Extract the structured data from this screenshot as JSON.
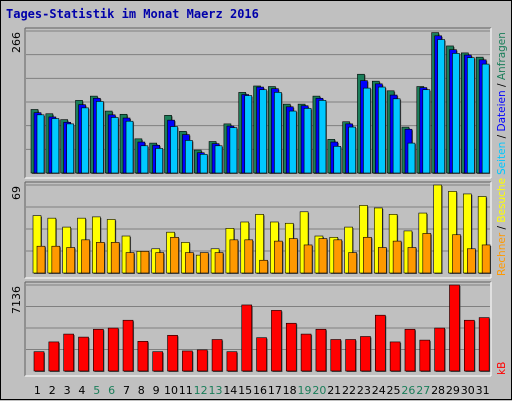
{
  "title": "Tages-Statistik im Monat Maerz 2016",
  "colors": {
    "background": "#c0c0c0",
    "panel": "#c0c0c0",
    "grid": "#808080",
    "title": "#0000aa",
    "anfragen": "#1b7e5a",
    "dateien": "#0000ff",
    "seiten": "#00c8ff",
    "besuche": "#ffff00",
    "rechner": "#ff9900",
    "kb": "#ff0000",
    "weekend_label": "#1b7e5a",
    "weekday_label": "#000000"
  },
  "chart_data": [
    {
      "type": "bar",
      "panel": "top",
      "ymax_label": "266",
      "ylim": [
        0,
        266
      ],
      "categories": [
        "1",
        "2",
        "3",
        "4",
        "5",
        "6",
        "7",
        "8",
        "9",
        "10",
        "11",
        "12",
        "13",
        "14",
        "15",
        "16",
        "17",
        "18",
        "19",
        "20",
        "21",
        "22",
        "23",
        "24",
        "25",
        "26",
        "27",
        "28",
        "29",
        "30",
        "31"
      ],
      "weekend_days": [
        "5",
        "6",
        "12",
        "13",
        "19",
        "20",
        "26",
        "27"
      ],
      "legend": [
        "Anfragen",
        "Dateien",
        "Seiten"
      ],
      "series": [
        {
          "name": "Anfragen",
          "color": "#1b7e5a",
          "values": [
            119,
            111,
            100,
            136,
            144,
            116,
            110,
            64,
            56,
            108,
            78,
            43,
            59,
            92,
            151,
            163,
            162,
            129,
            129,
            144,
            63,
            96,
            185,
            172,
            154,
            86,
            162,
            263,
            238,
            225,
            217
          ]
        },
        {
          "name": "Dateien",
          "color": "#0000ff",
          "values": [
            113,
            105,
            95,
            128,
            140,
            109,
            103,
            58,
            52,
            99,
            72,
            38,
            55,
            88,
            147,
            161,
            158,
            124,
            126,
            140,
            58,
            92,
            173,
            167,
            146,
            82,
            160,
            257,
            231,
            221,
            212
          ]
        },
        {
          "name": "Seiten",
          "color": "#00c8ff",
          "values": [
            109,
            102,
            92,
            122,
            134,
            104,
            97,
            51,
            46,
            87,
            61,
            35,
            51,
            85,
            145,
            156,
            151,
            116,
            121,
            136,
            50,
            86,
            159,
            161,
            139,
            56,
            156,
            250,
            224,
            216,
            204
          ]
        }
      ]
    },
    {
      "type": "bar",
      "panel": "middle",
      "ymax_label": "69",
      "ylim": [
        0,
        69
      ],
      "categories": [
        "1",
        "2",
        "3",
        "4",
        "5",
        "6",
        "7",
        "8",
        "9",
        "10",
        "11",
        "12",
        "13",
        "14",
        "15",
        "16",
        "17",
        "18",
        "19",
        "20",
        "21",
        "22",
        "23",
        "24",
        "25",
        "26",
        "27",
        "28",
        "29",
        "30",
        "31"
      ],
      "legend": [
        "Rechner",
        "Besuche"
      ],
      "series": [
        {
          "name": "Besuche",
          "color": "#ffff00",
          "values": [
            45,
            43,
            36,
            43,
            44,
            42,
            29,
            17,
            19,
            32,
            24,
            14,
            19,
            35,
            40,
            46,
            40,
            39,
            48,
            29,
            28,
            36,
            53,
            51,
            46,
            33,
            47,
            69,
            64,
            62,
            60
          ]
        },
        {
          "name": "Rechner",
          "color": "#ff9900",
          "values": [
            21,
            21,
            20,
            26,
            24,
            24,
            16,
            17,
            16,
            28,
            16,
            16,
            16,
            26,
            26,
            10,
            25,
            27,
            22,
            27,
            26,
            16,
            28,
            20,
            25,
            20,
            31,
            0,
            30,
            19,
            22
          ]
        }
      ]
    },
    {
      "type": "bar",
      "panel": "bottom",
      "ymax_label": "7136",
      "ylim": [
        0,
        7136
      ],
      "categories": [
        "1",
        "2",
        "3",
        "4",
        "5",
        "6",
        "7",
        "8",
        "9",
        "10",
        "11",
        "12",
        "13",
        "14",
        "15",
        "16",
        "17",
        "18",
        "19",
        "20",
        "21",
        "22",
        "23",
        "24",
        "25",
        "26",
        "27",
        "28",
        "29",
        "30",
        "31"
      ],
      "legend": [
        "kB"
      ],
      "series": [
        {
          "name": "kB",
          "color": "#ff0000",
          "values": [
            1603,
            2413,
            3063,
            2813,
            3463,
            3563,
            4213,
            2463,
            1603,
            2963,
            1663,
            1753,
            2613,
            1603,
            5480,
            2763,
            5030,
            3963,
            3063,
            3463,
            2613,
            2613,
            2863,
            4630,
            2413,
            3463,
            2563,
            3563,
            7136,
            4213,
            4430
          ]
        }
      ]
    }
  ]
}
